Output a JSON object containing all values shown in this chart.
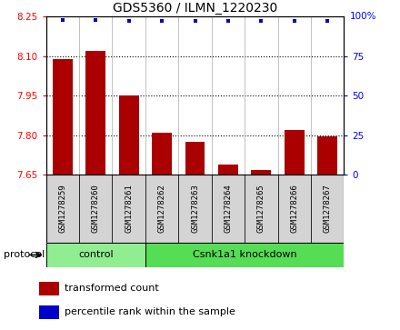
{
  "title": "GDS5360 / ILMN_1220230",
  "samples": [
    "GSM1278259",
    "GSM1278260",
    "GSM1278261",
    "GSM1278262",
    "GSM1278263",
    "GSM1278264",
    "GSM1278265",
    "GSM1278266",
    "GSM1278267"
  ],
  "bar_values": [
    8.09,
    8.12,
    7.95,
    7.81,
    7.775,
    7.69,
    7.67,
    7.82,
    7.795
  ],
  "percentile_values": [
    98,
    98,
    97,
    97,
    97,
    97,
    97,
    97,
    97
  ],
  "ylim": [
    7.65,
    8.25
  ],
  "yticks": [
    7.65,
    7.8,
    7.95,
    8.1,
    8.25
  ],
  "right_yticks": [
    0,
    25,
    50,
    75
  ],
  "bar_color": "#aa0000",
  "dot_color": "#0000cc",
  "bar_width": 0.6,
  "control_label": "control",
  "knockdown_label": "Csnk1a1 knockdown",
  "control_color": "#90ee90",
  "knockdown_color": "#55dd55",
  "protocol_label": "protocol",
  "legend_bar_label": "transformed count",
  "legend_dot_label": "percentile rank within the sample",
  "title_fontsize": 10,
  "tick_fontsize": 7.5,
  "sample_fontsize": 6.5,
  "legend_fontsize": 8,
  "protocol_fontsize": 8,
  "n_control": 3,
  "n_knockdown": 6
}
